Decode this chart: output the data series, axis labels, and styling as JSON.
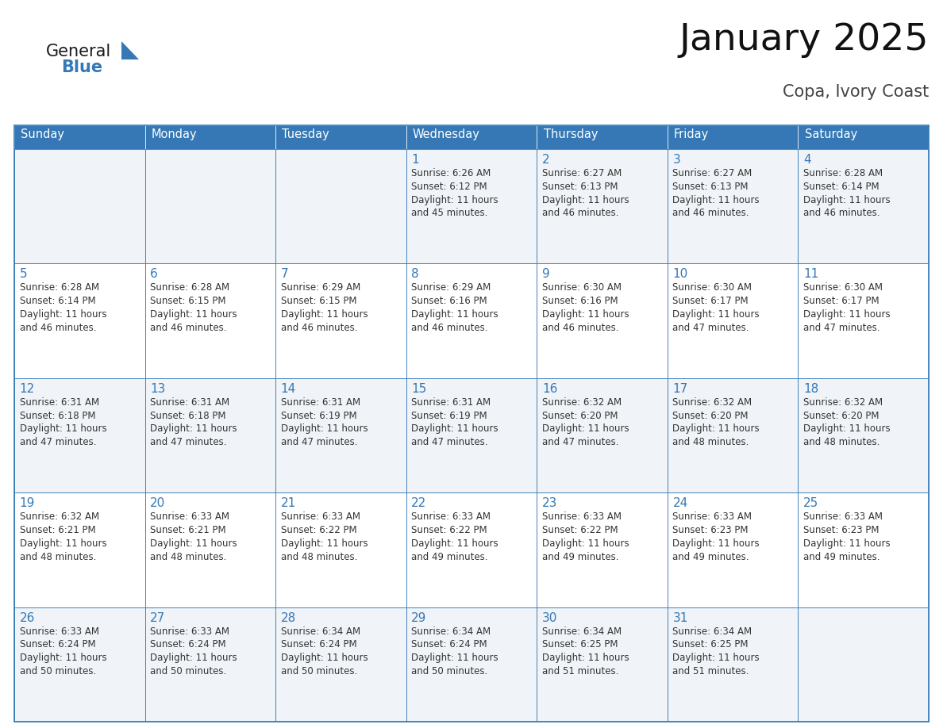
{
  "title": "January 2025",
  "subtitle": "Copa, Ivory Coast",
  "header_color": "#3578B5",
  "header_text_color": "#FFFFFF",
  "cell_bg_even": "#F0F4F8",
  "cell_bg_odd": "#FFFFFF",
  "border_color": "#3578B5",
  "day_number_color": "#3578B5",
  "text_color": "#333333",
  "days_of_week": [
    "Sunday",
    "Monday",
    "Tuesday",
    "Wednesday",
    "Thursday",
    "Friday",
    "Saturday"
  ],
  "weeks": [
    [
      {
        "day": "",
        "info": ""
      },
      {
        "day": "",
        "info": ""
      },
      {
        "day": "",
        "info": ""
      },
      {
        "day": "1",
        "info": "Sunrise: 6:26 AM\nSunset: 6:12 PM\nDaylight: 11 hours\nand 45 minutes."
      },
      {
        "day": "2",
        "info": "Sunrise: 6:27 AM\nSunset: 6:13 PM\nDaylight: 11 hours\nand 46 minutes."
      },
      {
        "day": "3",
        "info": "Sunrise: 6:27 AM\nSunset: 6:13 PM\nDaylight: 11 hours\nand 46 minutes."
      },
      {
        "day": "4",
        "info": "Sunrise: 6:28 AM\nSunset: 6:14 PM\nDaylight: 11 hours\nand 46 minutes."
      }
    ],
    [
      {
        "day": "5",
        "info": "Sunrise: 6:28 AM\nSunset: 6:14 PM\nDaylight: 11 hours\nand 46 minutes."
      },
      {
        "day": "6",
        "info": "Sunrise: 6:28 AM\nSunset: 6:15 PM\nDaylight: 11 hours\nand 46 minutes."
      },
      {
        "day": "7",
        "info": "Sunrise: 6:29 AM\nSunset: 6:15 PM\nDaylight: 11 hours\nand 46 minutes."
      },
      {
        "day": "8",
        "info": "Sunrise: 6:29 AM\nSunset: 6:16 PM\nDaylight: 11 hours\nand 46 minutes."
      },
      {
        "day": "9",
        "info": "Sunrise: 6:30 AM\nSunset: 6:16 PM\nDaylight: 11 hours\nand 46 minutes."
      },
      {
        "day": "10",
        "info": "Sunrise: 6:30 AM\nSunset: 6:17 PM\nDaylight: 11 hours\nand 47 minutes."
      },
      {
        "day": "11",
        "info": "Sunrise: 6:30 AM\nSunset: 6:17 PM\nDaylight: 11 hours\nand 47 minutes."
      }
    ],
    [
      {
        "day": "12",
        "info": "Sunrise: 6:31 AM\nSunset: 6:18 PM\nDaylight: 11 hours\nand 47 minutes."
      },
      {
        "day": "13",
        "info": "Sunrise: 6:31 AM\nSunset: 6:18 PM\nDaylight: 11 hours\nand 47 minutes."
      },
      {
        "day": "14",
        "info": "Sunrise: 6:31 AM\nSunset: 6:19 PM\nDaylight: 11 hours\nand 47 minutes."
      },
      {
        "day": "15",
        "info": "Sunrise: 6:31 AM\nSunset: 6:19 PM\nDaylight: 11 hours\nand 47 minutes."
      },
      {
        "day": "16",
        "info": "Sunrise: 6:32 AM\nSunset: 6:20 PM\nDaylight: 11 hours\nand 47 minutes."
      },
      {
        "day": "17",
        "info": "Sunrise: 6:32 AM\nSunset: 6:20 PM\nDaylight: 11 hours\nand 48 minutes."
      },
      {
        "day": "18",
        "info": "Sunrise: 6:32 AM\nSunset: 6:20 PM\nDaylight: 11 hours\nand 48 minutes."
      }
    ],
    [
      {
        "day": "19",
        "info": "Sunrise: 6:32 AM\nSunset: 6:21 PM\nDaylight: 11 hours\nand 48 minutes."
      },
      {
        "day": "20",
        "info": "Sunrise: 6:33 AM\nSunset: 6:21 PM\nDaylight: 11 hours\nand 48 minutes."
      },
      {
        "day": "21",
        "info": "Sunrise: 6:33 AM\nSunset: 6:22 PM\nDaylight: 11 hours\nand 48 minutes."
      },
      {
        "day": "22",
        "info": "Sunrise: 6:33 AM\nSunset: 6:22 PM\nDaylight: 11 hours\nand 49 minutes."
      },
      {
        "day": "23",
        "info": "Sunrise: 6:33 AM\nSunset: 6:22 PM\nDaylight: 11 hours\nand 49 minutes."
      },
      {
        "day": "24",
        "info": "Sunrise: 6:33 AM\nSunset: 6:23 PM\nDaylight: 11 hours\nand 49 minutes."
      },
      {
        "day": "25",
        "info": "Sunrise: 6:33 AM\nSunset: 6:23 PM\nDaylight: 11 hours\nand 49 minutes."
      }
    ],
    [
      {
        "day": "26",
        "info": "Sunrise: 6:33 AM\nSunset: 6:24 PM\nDaylight: 11 hours\nand 50 minutes."
      },
      {
        "day": "27",
        "info": "Sunrise: 6:33 AM\nSunset: 6:24 PM\nDaylight: 11 hours\nand 50 minutes."
      },
      {
        "day": "28",
        "info": "Sunrise: 6:34 AM\nSunset: 6:24 PM\nDaylight: 11 hours\nand 50 minutes."
      },
      {
        "day": "29",
        "info": "Sunrise: 6:34 AM\nSunset: 6:24 PM\nDaylight: 11 hours\nand 50 minutes."
      },
      {
        "day": "30",
        "info": "Sunrise: 6:34 AM\nSunset: 6:25 PM\nDaylight: 11 hours\nand 51 minutes."
      },
      {
        "day": "31",
        "info": "Sunrise: 6:34 AM\nSunset: 6:25 PM\nDaylight: 11 hours\nand 51 minutes."
      },
      {
        "day": "",
        "info": ""
      }
    ]
  ],
  "logo_general_color": "#1a1a1a",
  "logo_blue_color": "#3578B5",
  "logo_triangle_color": "#3578B5",
  "fig_width": 11.88,
  "fig_height": 9.18,
  "dpi": 100
}
